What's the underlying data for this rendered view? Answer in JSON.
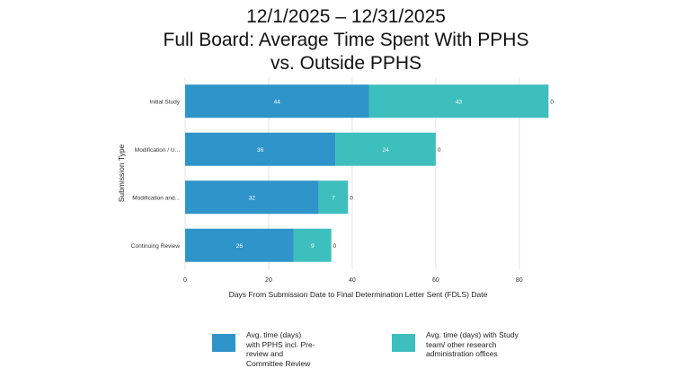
{
  "title": {
    "line1": "12/1/2025 – 12/31/2025",
    "line2": "Full Board: Average Time Spent With PPHS",
    "line3": "vs. Outside PPHS"
  },
  "colors": {
    "pphs": "#2f94c9",
    "outside": "#3dbfbd",
    "gridline": "#e4e4e4"
  },
  "chart_data": {
    "type": "bar",
    "orientation": "horizontal",
    "stacked": true,
    "title": "12/1/2025 – 12/31/2025 Full Board: Average Time Spent With PPHS vs. Outside PPHS",
    "xlabel": "Days From Submission Date to Final Determination Letter Sent (FDLS) Date",
    "ylabel": "Submission Type",
    "categories": [
      "Initial Study",
      "Modification / U...",
      "Modification and...",
      "Continuing Review"
    ],
    "series": [
      {
        "name": "Avg. time (days) with PPHS incl. Pre-review and Committee Review",
        "values": [
          44,
          36,
          32,
          26
        ]
      },
      {
        "name": "Avg. time (days) with Study team/ other research administration offices",
        "values": [
          43,
          24,
          7,
          9
        ]
      }
    ],
    "end_labels": [
      "0",
      "0",
      "0",
      "0"
    ],
    "xlim": [
      0,
      88
    ],
    "xticks": [
      "0",
      "20",
      "40",
      "60",
      "80"
    ],
    "grid": true,
    "legend_position": "bottom"
  },
  "legend": {
    "pphs_lines": [
      "Avg. time (days)",
      "with PPHS incl. Pre-",
      "review and",
      "Committee Review"
    ],
    "outside_lines": [
      "Avg. time (days) with Study",
      "team/ other research",
      "administration offices"
    ]
  }
}
